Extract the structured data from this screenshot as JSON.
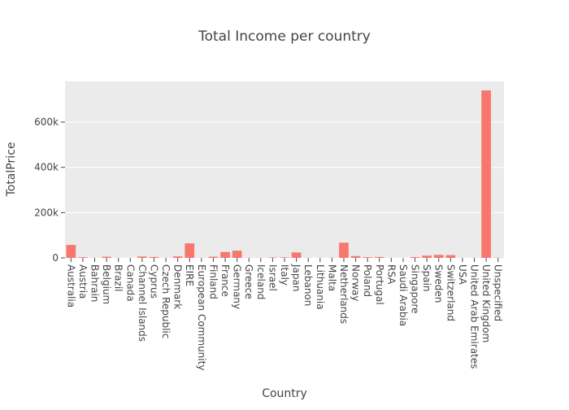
{
  "chart_data": {
    "type": "bar",
    "title": "Total Income per country",
    "xlabel": "Country",
    "ylabel": "TotalPrice",
    "ylim": [
      0,
      780000
    ],
    "yticks": [
      0,
      200000,
      400000,
      600000
    ],
    "ytick_labels": [
      "0",
      "200k",
      "400k",
      "600k"
    ],
    "grid": true,
    "bar_color": "#f8766d",
    "plot_background": "#ebebeb",
    "categories": [
      "Australia",
      "Austria",
      "Bahrain",
      "Belgium",
      "Brazil",
      "Canada",
      "Channel Islands",
      "Cyprus",
      "Czech Republic",
      "Denmark",
      "EIRE",
      "European Community",
      "Finland",
      "France",
      "Germany",
      "Greece",
      "Iceland",
      "Israel",
      "Italy",
      "Japan",
      "Lebanon",
      "Lithuania",
      "Malta",
      "Netherlands",
      "Norway",
      "Poland",
      "Portugal",
      "RSA",
      "Saudi Arabia",
      "Singapore",
      "Spain",
      "Sweden",
      "Switzerland",
      "USA",
      "United Arab Emirates",
      "United Kingdom",
      "Unspecified"
    ],
    "values": [
      57000,
      3000,
      500,
      5000,
      300,
      200,
      6000,
      4000,
      300,
      6500,
      64000,
      500,
      5000,
      26000,
      32000,
      500,
      500,
      2000,
      2000,
      24000,
      600,
      400,
      700,
      67000,
      8000,
      3000,
      4000,
      500,
      100,
      3500,
      10000,
      13000,
      12000,
      400,
      500,
      740000,
      1000
    ]
  }
}
